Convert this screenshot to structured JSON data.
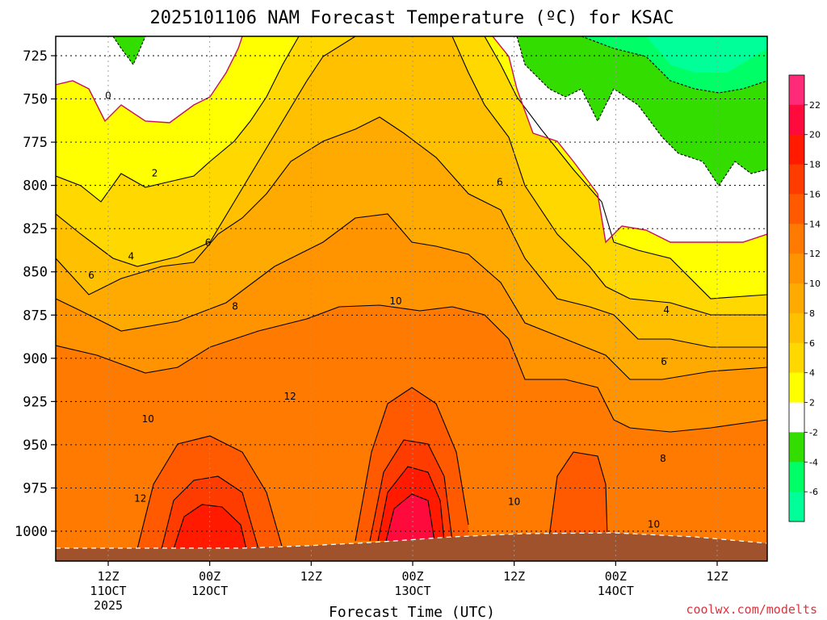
{
  "chart_data": {
    "type": "heatmap",
    "title": "2025101106 NAM Forecast Temperature (ºC) for KSAC",
    "xlabel": "Forecast Time (UTC)",
    "ylabel": "",
    "credit": "coolwx.com/modelts",
    "x_ticks": [
      {
        "hours": 6,
        "lines": [
          "12Z",
          "11OCT",
          "2025"
        ]
      },
      {
        "hours": 18,
        "lines": [
          "00Z",
          "12OCT"
        ]
      },
      {
        "hours": 30,
        "lines": [
          "12Z"
        ]
      },
      {
        "hours": 42,
        "lines": [
          "00Z",
          "13OCT"
        ]
      },
      {
        "hours": 54,
        "lines": [
          "12Z"
        ]
      },
      {
        "hours": 66,
        "lines": [
          "00Z",
          "14OCT"
        ]
      },
      {
        "hours": 78,
        "lines": [
          "12Z"
        ]
      }
    ],
    "x_range_hours": [
      0,
      84
    ],
    "y_ticks": [
      725,
      750,
      775,
      800,
      825,
      850,
      875,
      900,
      925,
      950,
      975,
      1000
    ],
    "y_range_hPa": [
      710,
      1010
    ],
    "grid": true,
    "surface_color": "#a0522d",
    "colorbar": {
      "placement": "right",
      "labels": [
        "22",
        "20",
        "18",
        "16",
        "14",
        "12",
        "10",
        "8",
        "6",
        "4",
        "2",
        "-2",
        "-4",
        "-6"
      ],
      "colors": [
        "#ff2a78",
        "#ff0a3c",
        "#ff1a00",
        "#ff3c00",
        "#ff5a00",
        "#ff7a00",
        "#ff9400",
        "#ffaa00",
        "#ffc000",
        "#ffd800",
        "#ffff00",
        "#ffffff",
        "#33dd00",
        "#00ff66",
        "#00ff99"
      ]
    },
    "contour_labels": [
      {
        "text": "0",
        "hours": 6.0,
        "hPa": 748
      },
      {
        "text": "2",
        "hours": 11.5,
        "hPa": 793
      },
      {
        "text": "4",
        "hours": 8.7,
        "hPa": 841
      },
      {
        "text": "6",
        "hours": 4.0,
        "hPa": 852
      },
      {
        "text": "6",
        "hours": 17.8,
        "hPa": 833
      },
      {
        "text": "8",
        "hours": 21.0,
        "hPa": 870
      },
      {
        "text": "10",
        "hours": 40.0,
        "hPa": 867
      },
      {
        "text": "12",
        "hours": 27.5,
        "hPa": 922
      },
      {
        "text": "10",
        "hours": 10.7,
        "hPa": 935
      },
      {
        "text": "12",
        "hours": 9.8,
        "hPa": 981
      },
      {
        "text": "6",
        "hours": 52.3,
        "hPa": 798
      },
      {
        "text": "10",
        "hours": 54.0,
        "hPa": 983
      },
      {
        "text": "4",
        "hours": 72.0,
        "hPa": 872
      },
      {
        "text": "6",
        "hours": 71.7,
        "hPa": 902
      },
      {
        "text": "8",
        "hours": 71.6,
        "hPa": 958
      },
      {
        "text": "10",
        "hours": 70.5,
        "hPa": 996
      }
    ]
  }
}
